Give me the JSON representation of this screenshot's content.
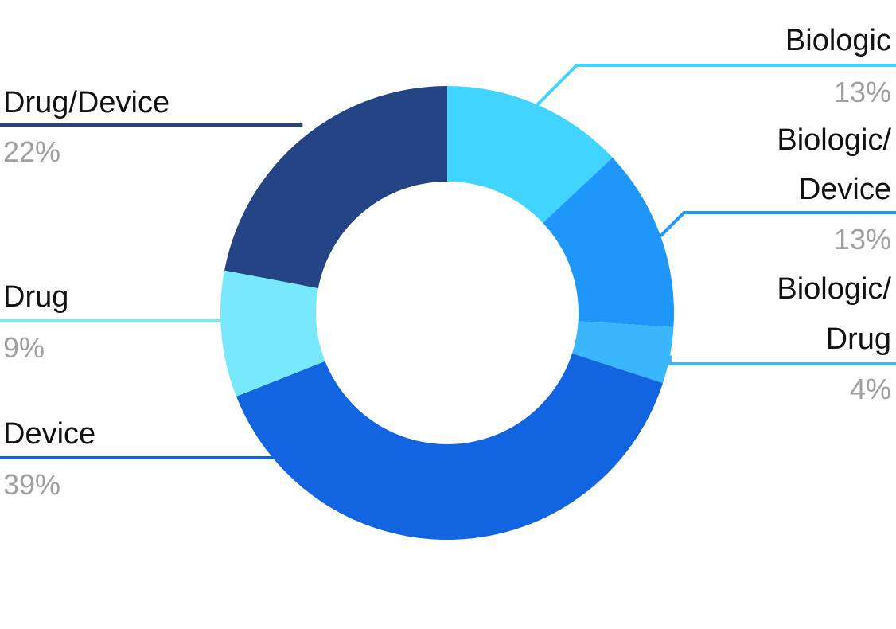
{
  "chart_data": {
    "type": "pie",
    "subtype": "donut",
    "title": "",
    "slices": [
      {
        "label": "Biologic",
        "label_lines": [
          "Biologic"
        ],
        "value": 13,
        "display": "13%",
        "color": "#40D4FF"
      },
      {
        "label": "Biologic/Device",
        "label_lines": [
          "Biologic/",
          "Device"
        ],
        "value": 13,
        "display": "13%",
        "color": "#1E96FA"
      },
      {
        "label": "Biologic/Drug",
        "label_lines": [
          "Biologic/",
          "Drug"
        ],
        "value": 4,
        "display": "4%",
        "color": "#3AB6FC"
      },
      {
        "label": "Device",
        "label_lines": [
          "Device"
        ],
        "value": 39,
        "display": "39%",
        "color": "#1364E0"
      },
      {
        "label": "Drug",
        "label_lines": [
          "Drug"
        ],
        "value": 9,
        "display": "9%",
        "color": "#78E8FC"
      },
      {
        "label": "Drug/Device",
        "label_lines": [
          "Drug/Device"
        ],
        "value": 22,
        "display": "22%",
        "color": "#244486"
      }
    ]
  }
}
